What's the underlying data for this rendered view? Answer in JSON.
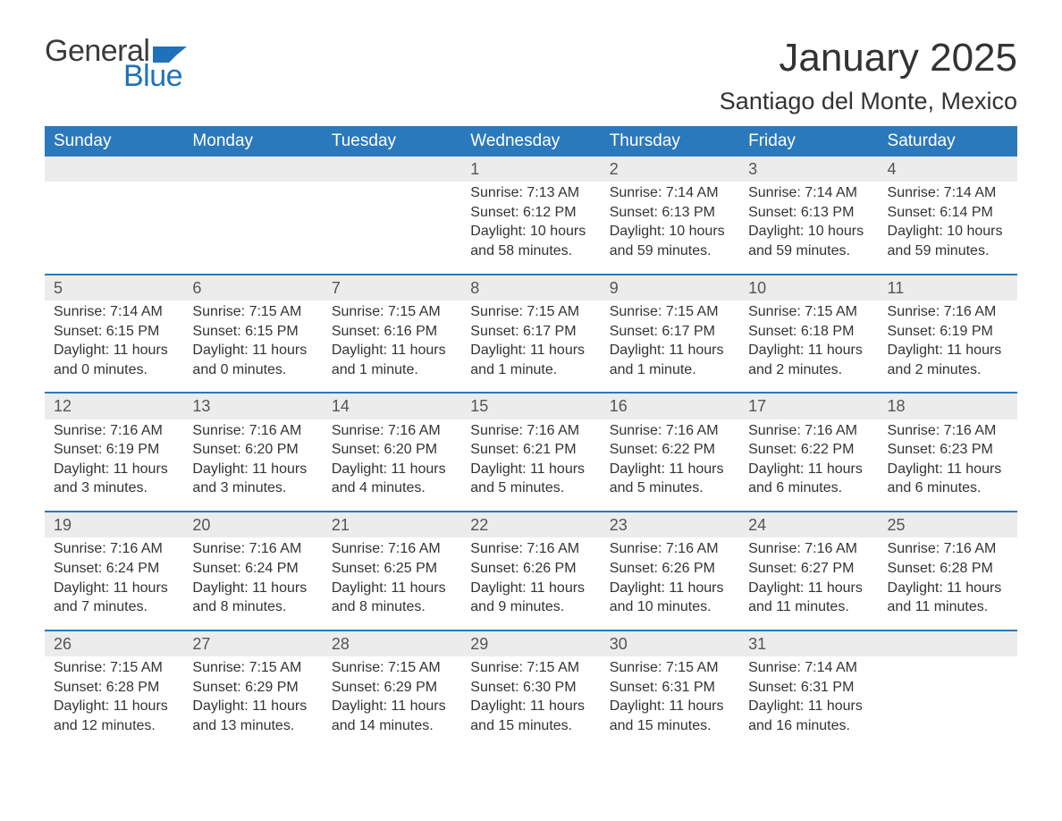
{
  "brand": {
    "word1": "General",
    "word2": "Blue",
    "word1_color": "#3a3a3a",
    "word2_color": "#1f72b8",
    "flag_color": "#1f72b8",
    "font_size": 34
  },
  "header": {
    "title": "January 2025",
    "location": "Santiago del Monte, Mexico",
    "title_fontsize": 44,
    "location_fontsize": 27,
    "text_color": "#333333"
  },
  "calendar": {
    "header_bg": "#2b79bd",
    "header_fg": "#ffffff",
    "daynum_bg": "#ececec",
    "row_border_color": "#2b79bd",
    "body_fontsize": 16,
    "daynum_fontsize": 18,
    "header_fontsize": 19,
    "day_names": [
      "Sunday",
      "Monday",
      "Tuesday",
      "Wednesday",
      "Thursday",
      "Friday",
      "Saturday"
    ],
    "weeks": [
      [
        null,
        null,
        null,
        {
          "n": "1",
          "sunrise": "Sunrise: 7:13 AM",
          "sunset": "Sunset: 6:12 PM",
          "daylight": "Daylight: 10 hours and 58 minutes."
        },
        {
          "n": "2",
          "sunrise": "Sunrise: 7:14 AM",
          "sunset": "Sunset: 6:13 PM",
          "daylight": "Daylight: 10 hours and 59 minutes."
        },
        {
          "n": "3",
          "sunrise": "Sunrise: 7:14 AM",
          "sunset": "Sunset: 6:13 PM",
          "daylight": "Daylight: 10 hours and 59 minutes."
        },
        {
          "n": "4",
          "sunrise": "Sunrise: 7:14 AM",
          "sunset": "Sunset: 6:14 PM",
          "daylight": "Daylight: 10 hours and 59 minutes."
        }
      ],
      [
        {
          "n": "5",
          "sunrise": "Sunrise: 7:14 AM",
          "sunset": "Sunset: 6:15 PM",
          "daylight": "Daylight: 11 hours and 0 minutes."
        },
        {
          "n": "6",
          "sunrise": "Sunrise: 7:15 AM",
          "sunset": "Sunset: 6:15 PM",
          "daylight": "Daylight: 11 hours and 0 minutes."
        },
        {
          "n": "7",
          "sunrise": "Sunrise: 7:15 AM",
          "sunset": "Sunset: 6:16 PM",
          "daylight": "Daylight: 11 hours and 1 minute."
        },
        {
          "n": "8",
          "sunrise": "Sunrise: 7:15 AM",
          "sunset": "Sunset: 6:17 PM",
          "daylight": "Daylight: 11 hours and 1 minute."
        },
        {
          "n": "9",
          "sunrise": "Sunrise: 7:15 AM",
          "sunset": "Sunset: 6:17 PM",
          "daylight": "Daylight: 11 hours and 1 minute."
        },
        {
          "n": "10",
          "sunrise": "Sunrise: 7:15 AM",
          "sunset": "Sunset: 6:18 PM",
          "daylight": "Daylight: 11 hours and 2 minutes."
        },
        {
          "n": "11",
          "sunrise": "Sunrise: 7:16 AM",
          "sunset": "Sunset: 6:19 PM",
          "daylight": "Daylight: 11 hours and 2 minutes."
        }
      ],
      [
        {
          "n": "12",
          "sunrise": "Sunrise: 7:16 AM",
          "sunset": "Sunset: 6:19 PM",
          "daylight": "Daylight: 11 hours and 3 minutes."
        },
        {
          "n": "13",
          "sunrise": "Sunrise: 7:16 AM",
          "sunset": "Sunset: 6:20 PM",
          "daylight": "Daylight: 11 hours and 3 minutes."
        },
        {
          "n": "14",
          "sunrise": "Sunrise: 7:16 AM",
          "sunset": "Sunset: 6:20 PM",
          "daylight": "Daylight: 11 hours and 4 minutes."
        },
        {
          "n": "15",
          "sunrise": "Sunrise: 7:16 AM",
          "sunset": "Sunset: 6:21 PM",
          "daylight": "Daylight: 11 hours and 5 minutes."
        },
        {
          "n": "16",
          "sunrise": "Sunrise: 7:16 AM",
          "sunset": "Sunset: 6:22 PM",
          "daylight": "Daylight: 11 hours and 5 minutes."
        },
        {
          "n": "17",
          "sunrise": "Sunrise: 7:16 AM",
          "sunset": "Sunset: 6:22 PM",
          "daylight": "Daylight: 11 hours and 6 minutes."
        },
        {
          "n": "18",
          "sunrise": "Sunrise: 7:16 AM",
          "sunset": "Sunset: 6:23 PM",
          "daylight": "Daylight: 11 hours and 6 minutes."
        }
      ],
      [
        {
          "n": "19",
          "sunrise": "Sunrise: 7:16 AM",
          "sunset": "Sunset: 6:24 PM",
          "daylight": "Daylight: 11 hours and 7 minutes."
        },
        {
          "n": "20",
          "sunrise": "Sunrise: 7:16 AM",
          "sunset": "Sunset: 6:24 PM",
          "daylight": "Daylight: 11 hours and 8 minutes."
        },
        {
          "n": "21",
          "sunrise": "Sunrise: 7:16 AM",
          "sunset": "Sunset: 6:25 PM",
          "daylight": "Daylight: 11 hours and 8 minutes."
        },
        {
          "n": "22",
          "sunrise": "Sunrise: 7:16 AM",
          "sunset": "Sunset: 6:26 PM",
          "daylight": "Daylight: 11 hours and 9 minutes."
        },
        {
          "n": "23",
          "sunrise": "Sunrise: 7:16 AM",
          "sunset": "Sunset: 6:26 PM",
          "daylight": "Daylight: 11 hours and 10 minutes."
        },
        {
          "n": "24",
          "sunrise": "Sunrise: 7:16 AM",
          "sunset": "Sunset: 6:27 PM",
          "daylight": "Daylight: 11 hours and 11 minutes."
        },
        {
          "n": "25",
          "sunrise": "Sunrise: 7:16 AM",
          "sunset": "Sunset: 6:28 PM",
          "daylight": "Daylight: 11 hours and 11 minutes."
        }
      ],
      [
        {
          "n": "26",
          "sunrise": "Sunrise: 7:15 AM",
          "sunset": "Sunset: 6:28 PM",
          "daylight": "Daylight: 11 hours and 12 minutes."
        },
        {
          "n": "27",
          "sunrise": "Sunrise: 7:15 AM",
          "sunset": "Sunset: 6:29 PM",
          "daylight": "Daylight: 11 hours and 13 minutes."
        },
        {
          "n": "28",
          "sunrise": "Sunrise: 7:15 AM",
          "sunset": "Sunset: 6:29 PM",
          "daylight": "Daylight: 11 hours and 14 minutes."
        },
        {
          "n": "29",
          "sunrise": "Sunrise: 7:15 AM",
          "sunset": "Sunset: 6:30 PM",
          "daylight": "Daylight: 11 hours and 15 minutes."
        },
        {
          "n": "30",
          "sunrise": "Sunrise: 7:15 AM",
          "sunset": "Sunset: 6:31 PM",
          "daylight": "Daylight: 11 hours and 15 minutes."
        },
        {
          "n": "31",
          "sunrise": "Sunrise: 7:14 AM",
          "sunset": "Sunset: 6:31 PM",
          "daylight": "Daylight: 11 hours and 16 minutes."
        },
        null
      ]
    ]
  }
}
